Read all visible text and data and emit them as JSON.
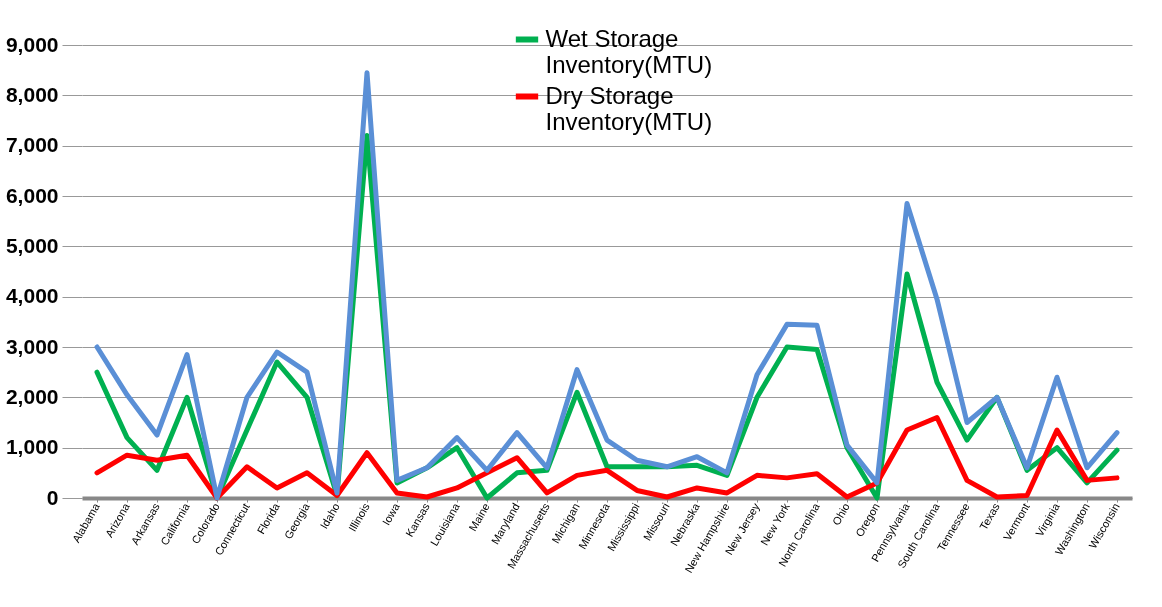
{
  "chart_data": {
    "type": "line",
    "categories": [
      "Alabama",
      "Arizona",
      "Arkansas",
      "California",
      "Colorado",
      "Connecticut",
      "Florida",
      "Georgia",
      "Idaho",
      "Illinois",
      "Iowa",
      "Kansas",
      "Louisiana",
      "Maine",
      "Maryland",
      "Massachusetts",
      "Michigan",
      "Minnesota",
      "Mississippi",
      "Missouri",
      "Nebraska",
      "New Hampshire",
      "New Jersey",
      "New York",
      "North Carolina",
      "Ohio",
      "Oregon",
      "Pennsylvania",
      "South Carolina",
      "Tennessee",
      "Texas",
      "Vermont",
      "Virginia",
      "Washington",
      "Wisconsin"
    ],
    "series": [
      {
        "name": "Wet Storage Inventory(MTU)",
        "color": "#00b050",
        "values": [
          2500,
          1200,
          550,
          2000,
          0,
          1350,
          2700,
          2000,
          50,
          7200,
          300,
          600,
          1000,
          0,
          500,
          550,
          2100,
          620,
          620,
          620,
          650,
          450,
          2000,
          3000,
          2950,
          1000,
          0,
          4450,
          2300,
          1150,
          2000,
          550,
          1000,
          300,
          950
        ]
      },
      {
        "name": "Dry Storage Inventory(MTU)",
        "color": "#ff0000",
        "values": [
          500,
          850,
          750,
          850,
          0,
          620,
          200,
          500,
          50,
          900,
          100,
          20,
          200,
          500,
          800,
          100,
          450,
          550,
          150,
          20,
          200,
          100,
          450,
          400,
          480,
          20,
          300,
          1350,
          1600,
          350,
          20,
          50,
          1350,
          350,
          400
        ]
      },
      {
        "color": "#5a8fd6",
        "values": [
          3000,
          2050,
          1250,
          2850,
          0,
          2000,
          2900,
          2500,
          100,
          8450,
          350,
          600,
          1200,
          550,
          1300,
          600,
          2550,
          1150,
          750,
          620,
          820,
          500,
          2450,
          3450,
          3430,
          1050,
          300,
          5850,
          3950,
          1500,
          2000,
          600,
          2400,
          600,
          1300
        ]
      }
    ],
    "ylim": [
      0,
      9000
    ],
    "yticks": [
      0,
      {
        "value": 1000,
        "label": "1,000"
      },
      {
        "value": 2000,
        "label": "2,000"
      },
      {
        "value": 3000,
        "label": "3,000"
      },
      {
        "value": 4000,
        "label": "4,000"
      },
      {
        "value": 5000,
        "label": "5,000"
      },
      {
        "value": 6000,
        "label": "6,000"
      },
      {
        "value": 7000,
        "label": "7,000"
      },
      {
        "value": 8000,
        "label": "8,000"
      },
      {
        "value": 9000,
        "label": "9,000"
      }
    ],
    "grid": "y",
    "legend": "top",
    "marker": "none",
    "line_style": "solid"
  }
}
